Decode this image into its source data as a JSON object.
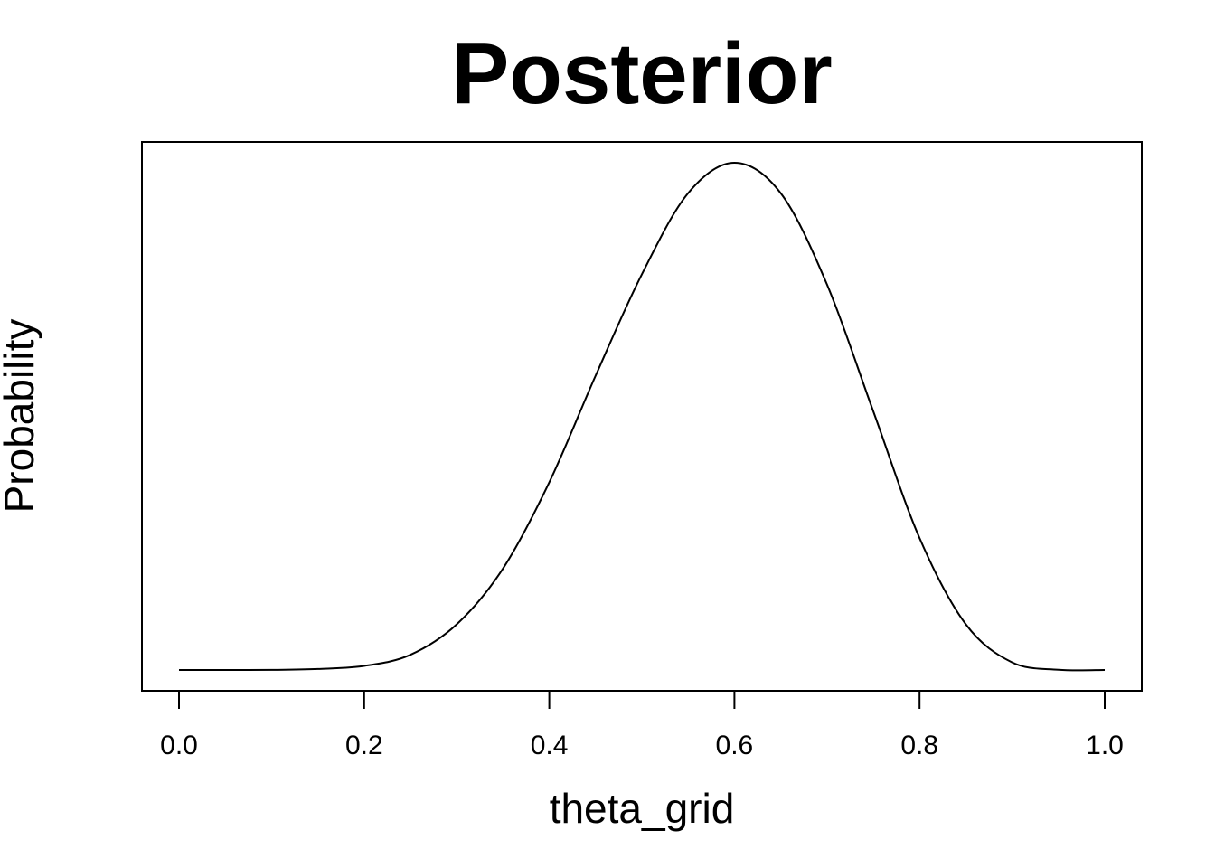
{
  "chart_data": {
    "type": "line",
    "title": "Posterior",
    "xlabel": "theta_grid",
    "ylabel": "Probability",
    "xlim": [
      0.0,
      1.0
    ],
    "ylim": [
      0.0,
      1.0
    ],
    "x_ticks": [
      0.0,
      0.2,
      0.4,
      0.6,
      0.8,
      1.0
    ],
    "x_tick_labels": [
      "0.0",
      "0.2",
      "0.4",
      "0.6",
      "0.8",
      "1.0"
    ],
    "y_ticks_shown": false,
    "grid": false,
    "legend": "none",
    "curve_color": "#000000",
    "series": [
      {
        "x": [
          0.0,
          0.05,
          0.1,
          0.15,
          0.2,
          0.25,
          0.3,
          0.35,
          0.4,
          0.45,
          0.5,
          0.55,
          0.6,
          0.65,
          0.7,
          0.75,
          0.8,
          0.85,
          0.9,
          0.95,
          1.0
        ],
        "values": [
          0.0,
          0.0,
          0.0002,
          0.002,
          0.008,
          0.03,
          0.09,
          0.2,
          0.37,
          0.58,
          0.78,
          0.94,
          1.0,
          0.94,
          0.76,
          0.51,
          0.26,
          0.09,
          0.015,
          0.0005,
          0.0
        ]
      }
    ]
  }
}
